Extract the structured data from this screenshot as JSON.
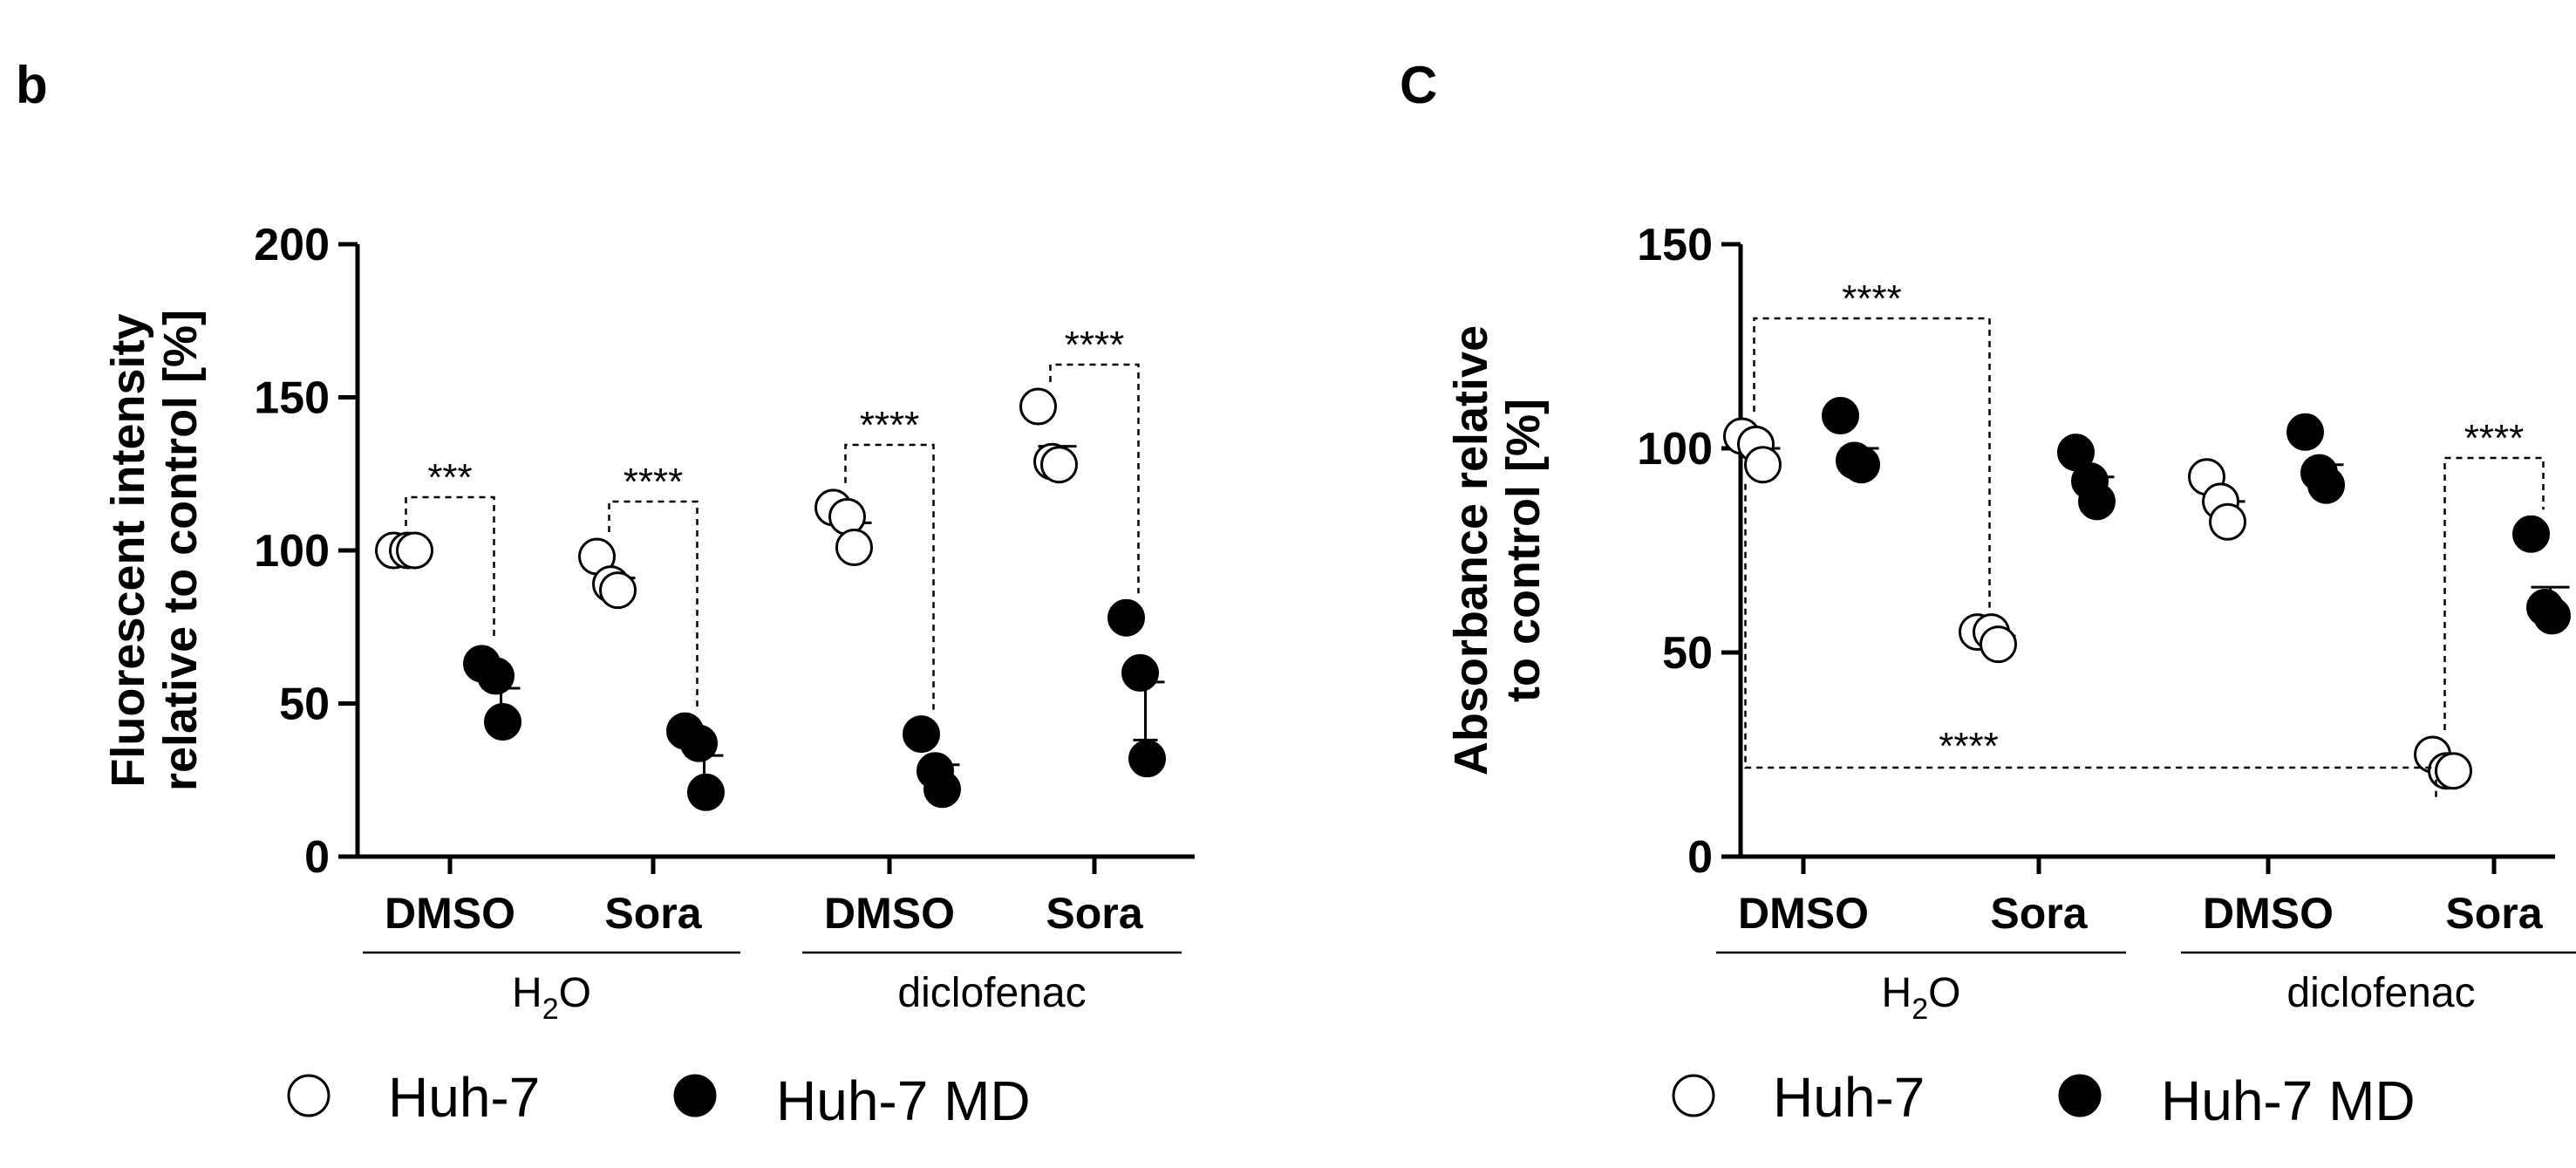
{
  "legend": {
    "open_label": "Huh-7",
    "filled_label": "Huh-7 MD"
  },
  "chart_data": [
    {
      "panel": "b",
      "type": "scatter",
      "ylabel": [
        "Fluorescent intensity",
        "relative to control [%]"
      ],
      "ylim": [
        0,
        200
      ],
      "yticks": [
        0,
        50,
        100,
        150,
        200
      ],
      "categories": [
        "DMSO",
        "Sora",
        "DMSO",
        "Sora"
      ],
      "groups": [
        {
          "label_main": "H",
          "label_sub": "2",
          "label_end": "O",
          "span": [
            0,
            1
          ]
        },
        {
          "label_main": "diclofenac",
          "label_sub": "",
          "label_end": "",
          "span": [
            2,
            3
          ]
        }
      ],
      "series": [
        {
          "name": "Huh-7",
          "marker": "open",
          "mean": [
            100,
            91,
            109,
            134
          ],
          "points": [
            [
              100,
              100,
              100
            ],
            [
              98,
              89,
              87
            ],
            [
              114,
              111,
              101
            ],
            [
              147,
              129,
              128
            ]
          ]
        },
        {
          "name": "Huh-7 MD",
          "marker": "filled",
          "mean": [
            55,
            33,
            30,
            57
          ],
          "points": [
            [
              63,
              59,
              44
            ],
            [
              41,
              37,
              21
            ],
            [
              40,
              28,
              22
            ],
            [
              78,
              60,
              32
            ]
          ]
        }
      ],
      "significance": [
        {
          "label": "***",
          "from": [
            0,
            "open"
          ],
          "to": [
            0,
            "filled"
          ]
        },
        {
          "label": "****",
          "from": [
            1,
            "open"
          ],
          "to": [
            1,
            "filled"
          ]
        },
        {
          "label": "****",
          "from": [
            2,
            "open"
          ],
          "to": [
            2,
            "filled"
          ]
        },
        {
          "label": "****",
          "from": [
            3,
            "open"
          ],
          "to": [
            3,
            "filled"
          ]
        }
      ]
    },
    {
      "panel": "C",
      "type": "scatter",
      "ylabel": [
        "Absorbance relative",
        "to control [%]"
      ],
      "ylim": [
        0,
        150
      ],
      "yticks": [
        0,
        50,
        100,
        150
      ],
      "categories": [
        "DMSO",
        "Sora",
        "DMSO",
        "Sora"
      ],
      "groups": [
        {
          "label_main": "H",
          "label_sub": "2",
          "label_end": "O",
          "span": [
            0,
            1
          ]
        },
        {
          "label_main": "diclofenac",
          "label_sub": "",
          "label_end": "",
          "span": [
            2,
            3
          ]
        }
      ],
      "series": [
        {
          "name": "Huh-7",
          "marker": "open",
          "mean": [
            100,
            54,
            87,
            22
          ],
          "points": [
            [
              103,
              101,
              96
            ],
            [
              55,
              55,
              52
            ],
            [
              93,
              87,
              82
            ],
            [
              25,
              21,
              21
            ]
          ]
        },
        {
          "name": "Huh-7 MD",
          "marker": "filled",
          "mean": [
            100,
            93,
            96,
            66
          ],
          "points": [
            [
              108,
              97,
              96
            ],
            [
              99,
              92,
              87
            ],
            [
              104,
              94,
              91
            ],
            [
              79,
              61,
              59
            ]
          ]
        }
      ],
      "significance": [
        {
          "label": "****",
          "from": [
            0,
            "open"
          ],
          "to": [
            1,
            "open"
          ],
          "style": "top"
        },
        {
          "label": "****",
          "from": [
            0,
            "open"
          ],
          "to": [
            3,
            "open"
          ],
          "style": "bottom"
        },
        {
          "label": "****",
          "from": [
            3,
            "open"
          ],
          "to": [
            3,
            "filled"
          ]
        }
      ]
    }
  ]
}
